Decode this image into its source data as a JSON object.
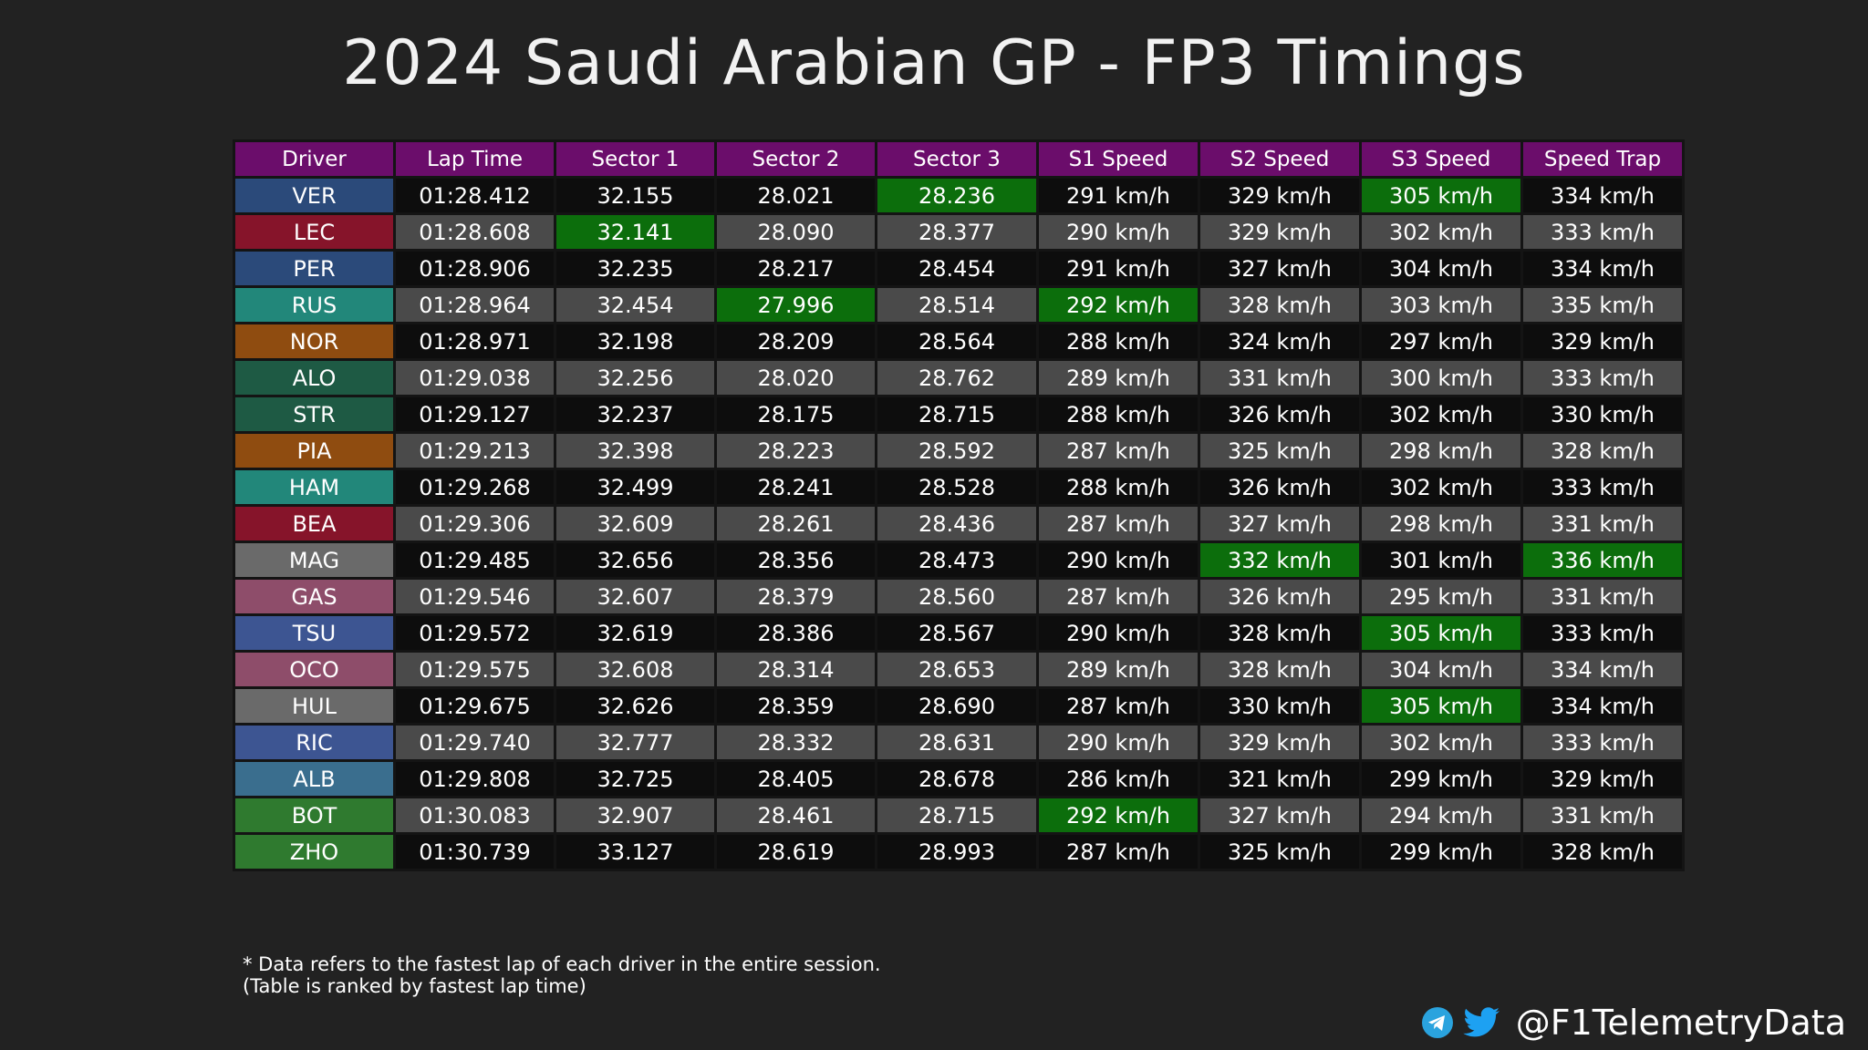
{
  "title": "2024 Saudi Arabian GP - FP3 Timings",
  "watermark": "@F1TelemetryData",
  "footnote": {
    "line1": "* Data refers to the fastest lap of each driver in the entire session.",
    "line2": "(Table is ranked by fastest lap time)"
  },
  "brand": {
    "handle": "@F1TelemetryData",
    "icons": [
      "telegram-icon",
      "twitter-icon"
    ],
    "telegram_color": "#2aa3de",
    "twitter_color": "#1da1f2"
  },
  "colors": {
    "header": "#6b0d6b",
    "best": "#0c6e0c",
    "row_dark": "#0d0d0d",
    "row_light": "#4a4a4a"
  },
  "chart_data": {
    "type": "table",
    "title": "2024 Saudi Arabian GP - FP3 Timings",
    "columns": [
      "Driver",
      "Lap Time",
      "Sector 1",
      "Sector 2",
      "Sector 3",
      "S1 Speed",
      "S2 Speed",
      "S3 Speed",
      "Speed Trap"
    ],
    "rows": [
      {
        "driver": "VER",
        "color": "#2b4a7a",
        "lap": "01:28.412",
        "s1": "32.155",
        "s2": "28.021",
        "s3": "28.236",
        "s1_speed": "291 km/h",
        "s2_speed": "329 km/h",
        "s3_speed": "305 km/h",
        "trap": "334 km/h",
        "best": [
          "s3",
          "s3_speed"
        ]
      },
      {
        "driver": "LEC",
        "color": "#86142a",
        "lap": "01:28.608",
        "s1": "32.141",
        "s2": "28.090",
        "s3": "28.377",
        "s1_speed": "290 km/h",
        "s2_speed": "329 km/h",
        "s3_speed": "302 km/h",
        "trap": "333 km/h",
        "best": [
          "s1"
        ]
      },
      {
        "driver": "PER",
        "color": "#2b4a7a",
        "lap": "01:28.906",
        "s1": "32.235",
        "s2": "28.217",
        "s3": "28.454",
        "s1_speed": "291 km/h",
        "s2_speed": "327 km/h",
        "s3_speed": "304 km/h",
        "trap": "334 km/h",
        "best": []
      },
      {
        "driver": "RUS",
        "color": "#22877a",
        "lap": "01:28.964",
        "s1": "32.454",
        "s2": "27.996",
        "s3": "28.514",
        "s1_speed": "292 km/h",
        "s2_speed": "328 km/h",
        "s3_speed": "303 km/h",
        "trap": "335 km/h",
        "best": [
          "s2",
          "s1_speed"
        ]
      },
      {
        "driver": "NOR",
        "color": "#8f4c10",
        "lap": "01:28.971",
        "s1": "32.198",
        "s2": "28.209",
        "s3": "28.564",
        "s1_speed": "288 km/h",
        "s2_speed": "324 km/h",
        "s3_speed": "297 km/h",
        "trap": "329 km/h",
        "best": []
      },
      {
        "driver": "ALO",
        "color": "#1e5a44",
        "lap": "01:29.038",
        "s1": "32.256",
        "s2": "28.020",
        "s3": "28.762",
        "s1_speed": "289 km/h",
        "s2_speed": "331 km/h",
        "s3_speed": "300 km/h",
        "trap": "333 km/h",
        "best": []
      },
      {
        "driver": "STR",
        "color": "#1e5a44",
        "lap": "01:29.127",
        "s1": "32.237",
        "s2": "28.175",
        "s3": "28.715",
        "s1_speed": "288 km/h",
        "s2_speed": "326 km/h",
        "s3_speed": "302 km/h",
        "trap": "330 km/h",
        "best": []
      },
      {
        "driver": "PIA",
        "color": "#8f4c10",
        "lap": "01:29.213",
        "s1": "32.398",
        "s2": "28.223",
        "s3": "28.592",
        "s1_speed": "287 km/h",
        "s2_speed": "325 km/h",
        "s3_speed": "298 km/h",
        "trap": "328 km/h",
        "best": []
      },
      {
        "driver": "HAM",
        "color": "#22877a",
        "lap": "01:29.268",
        "s1": "32.499",
        "s2": "28.241",
        "s3": "28.528",
        "s1_speed": "288 km/h",
        "s2_speed": "326 km/h",
        "s3_speed": "302 km/h",
        "trap": "333 km/h",
        "best": []
      },
      {
        "driver": "BEA",
        "color": "#86142a",
        "lap": "01:29.306",
        "s1": "32.609",
        "s2": "28.261",
        "s3": "28.436",
        "s1_speed": "287 km/h",
        "s2_speed": "327 km/h",
        "s3_speed": "298 km/h",
        "trap": "331 km/h",
        "best": []
      },
      {
        "driver": "MAG",
        "color": "#6a6a6a",
        "lap": "01:29.485",
        "s1": "32.656",
        "s2": "28.356",
        "s3": "28.473",
        "s1_speed": "290 km/h",
        "s2_speed": "332 km/h",
        "s3_speed": "301 km/h",
        "trap": "336 km/h",
        "best": [
          "s2_speed",
          "trap"
        ]
      },
      {
        "driver": "GAS",
        "color": "#8e4d6a",
        "lap": "01:29.546",
        "s1": "32.607",
        "s2": "28.379",
        "s3": "28.560",
        "s1_speed": "287 km/h",
        "s2_speed": "326 km/h",
        "s3_speed": "295 km/h",
        "trap": "331 km/h",
        "best": []
      },
      {
        "driver": "TSU",
        "color": "#3d5592",
        "lap": "01:29.572",
        "s1": "32.619",
        "s2": "28.386",
        "s3": "28.567",
        "s1_speed": "290 km/h",
        "s2_speed": "328 km/h",
        "s3_speed": "305 km/h",
        "trap": "333 km/h",
        "best": [
          "s3_speed"
        ]
      },
      {
        "driver": "OCO",
        "color": "#8e4d6a",
        "lap": "01:29.575",
        "s1": "32.608",
        "s2": "28.314",
        "s3": "28.653",
        "s1_speed": "289 km/h",
        "s2_speed": "328 km/h",
        "s3_speed": "304 km/h",
        "trap": "334 km/h",
        "best": []
      },
      {
        "driver": "HUL",
        "color": "#6a6a6a",
        "lap": "01:29.675",
        "s1": "32.626",
        "s2": "28.359",
        "s3": "28.690",
        "s1_speed": "287 km/h",
        "s2_speed": "330 km/h",
        "s3_speed": "305 km/h",
        "trap": "334 km/h",
        "best": [
          "s3_speed"
        ]
      },
      {
        "driver": "RIC",
        "color": "#3d5592",
        "lap": "01:29.740",
        "s1": "32.777",
        "s2": "28.332",
        "s3": "28.631",
        "s1_speed": "290 km/h",
        "s2_speed": "329 km/h",
        "s3_speed": "302 km/h",
        "trap": "333 km/h",
        "best": []
      },
      {
        "driver": "ALB",
        "color": "#3a6e8e",
        "lap": "01:29.808",
        "s1": "32.725",
        "s2": "28.405",
        "s3": "28.678",
        "s1_speed": "286 km/h",
        "s2_speed": "321 km/h",
        "s3_speed": "299 km/h",
        "trap": "329 km/h",
        "best": []
      },
      {
        "driver": "BOT",
        "color": "#2f7a2f",
        "lap": "01:30.083",
        "s1": "32.907",
        "s2": "28.461",
        "s3": "28.715",
        "s1_speed": "292 km/h",
        "s2_speed": "327 km/h",
        "s3_speed": "294 km/h",
        "trap": "331 km/h",
        "best": [
          "s1_speed"
        ]
      },
      {
        "driver": "ZHO",
        "color": "#2f7a2f",
        "lap": "01:30.739",
        "s1": "33.127",
        "s2": "28.619",
        "s3": "28.993",
        "s1_speed": "287 km/h",
        "s2_speed": "325 km/h",
        "s3_speed": "299 km/h",
        "trap": "328 km/h",
        "best": []
      }
    ]
  }
}
